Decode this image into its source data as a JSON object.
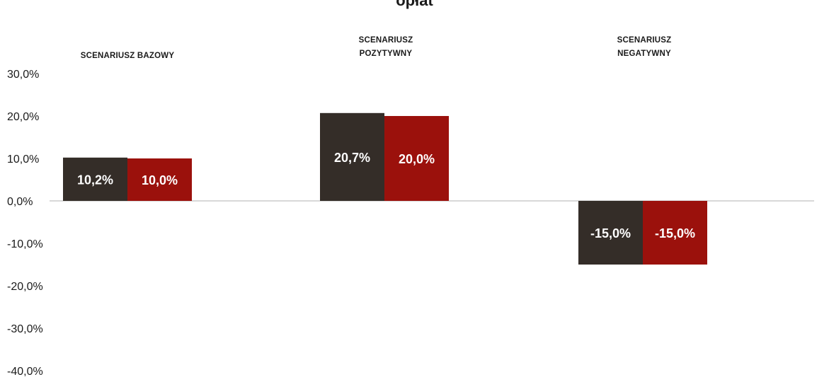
{
  "chart_data": {
    "type": "bar",
    "title_lines": [
      "",
      "opłat"
    ],
    "categories": [
      "SCENARIUSZ BAZOWY",
      "SCENARIUSZ POZYTYWNY",
      "SCENARIUSZ NEGATYWNY"
    ],
    "series": [
      {
        "values": [
          10.2,
          20.7,
          -15.0
        ],
        "labels": [
          "10,2%",
          "20,7%",
          "-15,0%"
        ]
      },
      {
        "values": [
          10.0,
          20.0,
          -15.0
        ],
        "labels": [
          "10,0%",
          "20,0%",
          "-15,0%"
        ]
      }
    ],
    "ylim": [
      -40,
      30
    ],
    "yticks": [
      30,
      20,
      10,
      0,
      -10,
      -20,
      -30,
      -40
    ],
    "ytick_labels": [
      "30,0%",
      "20,0%",
      "10,0%",
      "0,0%",
      "-10,0%",
      "-20,0%",
      "-30,0%",
      "-40,0%"
    ],
    "grid": false,
    "legend": "none"
  },
  "colors": {
    "series_0": "#342d28",
    "series_1": "#9b110c",
    "data_label": "#ffffff",
    "axis": "#cccccc"
  }
}
